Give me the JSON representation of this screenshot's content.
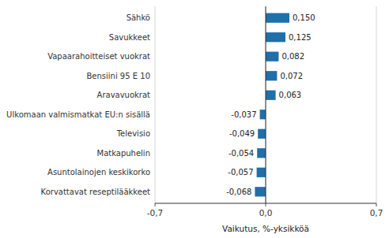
{
  "chart_data": {
    "type": "bar",
    "orientation": "horizontal",
    "categories": [
      "Korvattavat reseptilääkkeet",
      "Asuntolainojen keskikorko",
      "Matkapuhelin",
      "Televisio",
      "Ulkomaan valmismatkat EU:n sisällä",
      "Aravavuokrat",
      "Bensiini 95 E 10",
      "Vapaarahoitteiset vuokrat",
      "Savukkeet",
      "Sähkö"
    ],
    "values": [
      -0.068,
      -0.057,
      -0.054,
      -0.049,
      -0.037,
      0.063,
      0.072,
      0.082,
      0.125,
      0.15
    ],
    "value_labels": [
      "-0,068",
      "-0,057",
      "-0,054",
      "-0,049",
      "-0,037",
      "0,063",
      "0,072",
      "0,082",
      "0,125",
      "0,150"
    ],
    "data_labels": true,
    "color": "#1F6FA8",
    "xlabel": "Vaikutus, %-yksikköä",
    "xlim": [
      -0.7,
      0.7
    ],
    "xticks": [
      {
        "value": -0.7,
        "label": "-0,7"
      },
      {
        "value": 0.0,
        "label": "0,0"
      },
      {
        "value": 0.7,
        "label": "0,7"
      }
    ],
    "grid": true
  }
}
